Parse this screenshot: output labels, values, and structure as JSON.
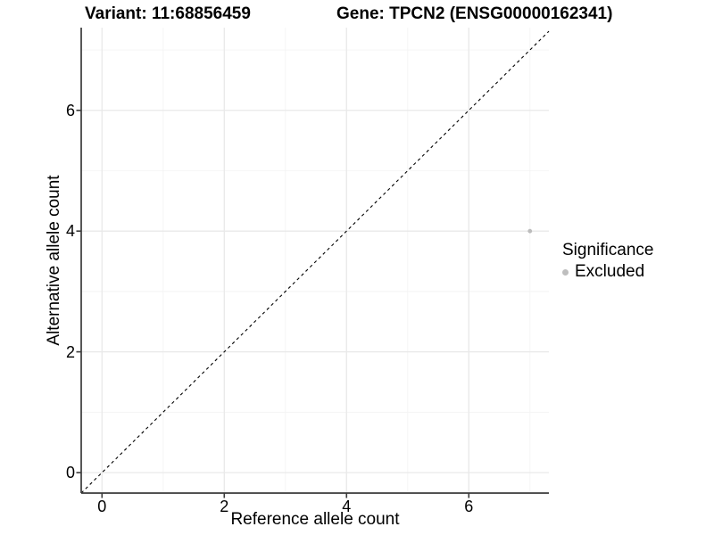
{
  "titles": {
    "variant": "Variant: 11:68856459",
    "gene": "Gene: TPCN2 (ENSG00000162341)"
  },
  "chart_data": {
    "type": "scatter",
    "xlabel": "Reference allele count",
    "ylabel": "Alternative allele count",
    "xlim": [
      -0.34,
      7.31
    ],
    "ylim": [
      -0.34,
      7.37
    ],
    "x_ticks": [
      0,
      2,
      4,
      6
    ],
    "y_ticks": [
      0,
      2,
      4,
      6
    ],
    "x_minor_ticks": [
      1,
      3,
      5,
      7
    ],
    "y_minor_ticks": [
      1,
      3,
      5,
      7
    ],
    "grid": true,
    "reference_line": {
      "type": "abline",
      "slope": 1,
      "intercept": 0,
      "style": "dashed",
      "color": "#000000"
    },
    "series": [
      {
        "name": "Excluded",
        "color": "#bcbcbc",
        "points": [
          {
            "x": 7,
            "y": 4
          }
        ]
      }
    ],
    "legend": {
      "title": "Significance",
      "position": "right",
      "items": [
        {
          "label": "Excluded",
          "color": "#bebebe"
        }
      ]
    },
    "colors": {
      "major_grid": "#e9e9e9",
      "minor_grid": "#f4f4f4",
      "axis_line": "#3a3a3a",
      "tick_mark": "#3a3a3a"
    }
  }
}
